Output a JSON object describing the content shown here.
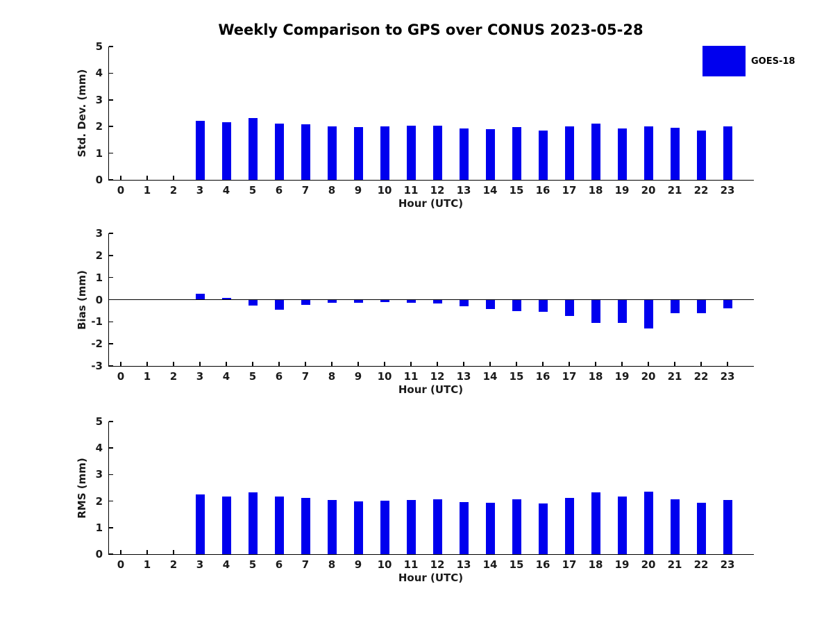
{
  "title": "Weekly Comparison to GPS over CONUS 2023-05-28",
  "legend": {
    "label": "GOES-18",
    "color": "#0000ee",
    "position": "top-right"
  },
  "colors": {
    "bar": "#0000ee",
    "axis": "#000000",
    "text": "#1a1a1a",
    "background": "#ffffff"
  },
  "chart_data": [
    {
      "type": "bar",
      "ylabel": "Std. Dev. (mm)",
      "xlabel": "Hour (UTC)",
      "ylim": [
        0,
        5
      ],
      "yticks": [
        0,
        1,
        2,
        3,
        4,
        5
      ],
      "zero_line": false,
      "grid": false,
      "series_name": "GOES-18",
      "categories": [
        "0",
        "1",
        "2",
        "3",
        "4",
        "5",
        "6",
        "7",
        "8",
        "9",
        "10",
        "11",
        "12",
        "13",
        "14",
        "15",
        "16",
        "17",
        "18",
        "19",
        "20",
        "21",
        "22",
        "23"
      ],
      "values": [
        null,
        null,
        null,
        2.22,
        2.15,
        2.32,
        2.12,
        2.09,
        2.01,
        1.98,
        2.01,
        2.03,
        2.04,
        1.94,
        1.89,
        1.98,
        1.84,
        2.01,
        2.12,
        1.93,
        2.01,
        1.96,
        1.85,
        2.01
      ]
    },
    {
      "type": "bar",
      "ylabel": "Bias (mm)",
      "xlabel": "Hour (UTC)",
      "ylim": [
        -3,
        3
      ],
      "yticks": [
        -3,
        -2,
        -1,
        0,
        1,
        2,
        3
      ],
      "zero_line": true,
      "grid": false,
      "series_name": "GOES-18",
      "categories": [
        "0",
        "1",
        "2",
        "3",
        "4",
        "5",
        "6",
        "7",
        "8",
        "9",
        "10",
        "11",
        "12",
        "13",
        "14",
        "15",
        "16",
        "17",
        "18",
        "19",
        "20",
        "21",
        "22",
        "23"
      ],
      "values": [
        null,
        null,
        null,
        0.28,
        0.08,
        -0.27,
        -0.46,
        -0.25,
        -0.15,
        -0.15,
        -0.1,
        -0.13,
        -0.18,
        -0.3,
        -0.42,
        -0.52,
        -0.55,
        -0.75,
        -1.05,
        -1.05,
        -1.3,
        -0.62,
        -0.6,
        -0.4
      ]
    },
    {
      "type": "bar",
      "ylabel": "RMS (mm)",
      "xlabel": "Hour (UTC)",
      "ylim": [
        0,
        5
      ],
      "yticks": [
        0,
        1,
        2,
        3,
        4,
        5
      ],
      "zero_line": false,
      "grid": false,
      "series_name": "GOES-18",
      "categories": [
        "0",
        "1",
        "2",
        "3",
        "4",
        "5",
        "6",
        "7",
        "8",
        "9",
        "10",
        "11",
        "12",
        "13",
        "14",
        "15",
        "16",
        "17",
        "18",
        "19",
        "20",
        "21",
        "22",
        "23"
      ],
      "values": [
        null,
        null,
        null,
        2.24,
        2.16,
        2.34,
        2.18,
        2.11,
        2.03,
        2.0,
        2.01,
        2.05,
        2.06,
        1.97,
        1.93,
        2.06,
        1.91,
        2.12,
        2.32,
        2.18,
        2.36,
        2.06,
        1.93,
        2.04
      ]
    }
  ]
}
